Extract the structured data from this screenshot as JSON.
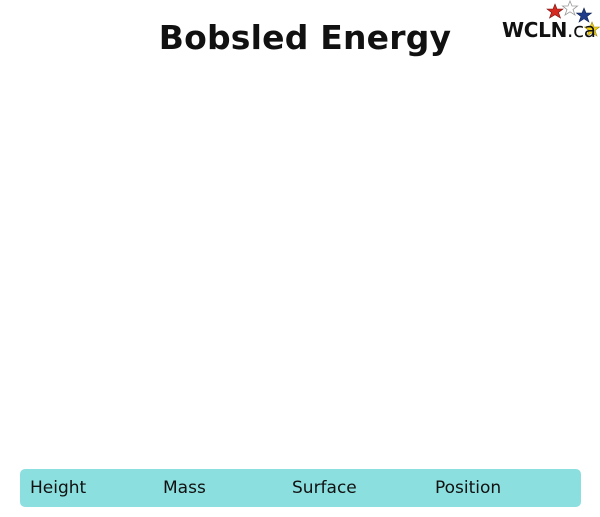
{
  "header": {
    "title": "Bobsled Energy"
  },
  "logo": {
    "text_main": "WCLN",
    "text_suffix": ".ca",
    "star_colors": [
      "#d42a22",
      "#ffffff",
      "#1f3b8c",
      "#f3d318"
    ]
  },
  "controls": {
    "items": [
      {
        "label": "Height"
      },
      {
        "label": "Mass"
      },
      {
        "label": "Surface"
      },
      {
        "label": "Position"
      }
    ],
    "bar_color": "#8cdfdf"
  }
}
